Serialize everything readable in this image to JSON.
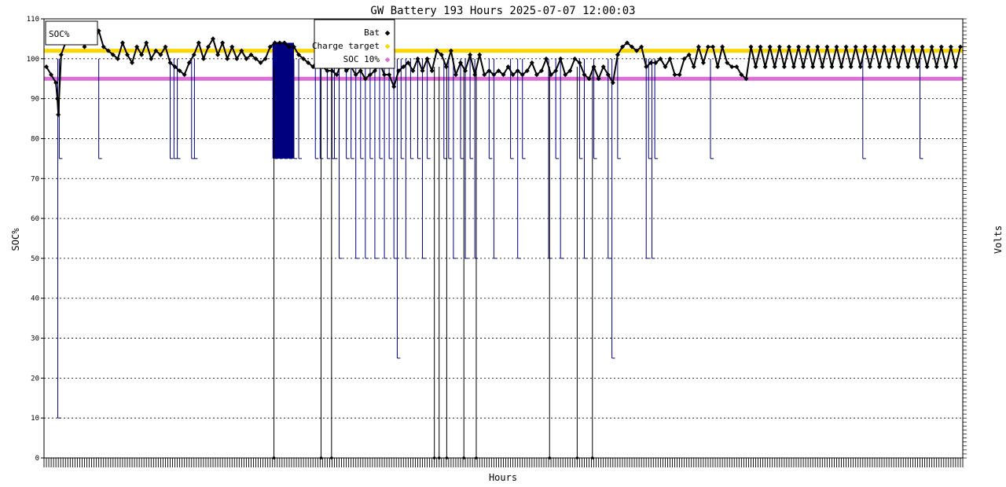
{
  "chart_data": {
    "type": "line",
    "title": "GW Battery 193 Hours 2025-07-07 12:00:03",
    "xlabel": "Hours",
    "ylabel": "SOC%",
    "y2label": "Volts",
    "inner_box_label": "SOC%",
    "ylim": [
      0,
      110
    ],
    "yticks": [
      0,
      10,
      20,
      30,
      40,
      50,
      60,
      70,
      80,
      90,
      100,
      110
    ],
    "xlim": [
      0,
      193
    ],
    "grid": true,
    "legend_position": "top-center",
    "colors": {
      "bat": "#000000",
      "soc_line": "#00007f",
      "charge_target": "#ffd700",
      "soc10": "#da70d6"
    },
    "series": [
      {
        "name": "Bat",
        "kind": "markers"
      },
      {
        "name": "Charge target",
        "kind": "hline",
        "value": 102
      },
      {
        "name": "SOC 10%",
        "kind": "hline",
        "value": 95
      }
    ],
    "bat_points": [
      [
        0.5,
        98
      ],
      [
        1.5,
        96
      ],
      [
        2.5,
        94
      ],
      [
        2.8,
        90
      ],
      [
        3.0,
        86
      ],
      [
        3.6,
        101
      ],
      [
        4.5,
        104
      ],
      [
        5.5,
        106
      ],
      [
        6.5,
        105
      ],
      [
        7.5,
        107
      ],
      [
        8.5,
        103
      ],
      [
        9.5,
        106
      ],
      [
        10.5,
        104
      ],
      [
        11.5,
        107
      ],
      [
        12.5,
        103
      ],
      [
        13.5,
        102
      ],
      [
        14.5,
        101
      ],
      [
        15.5,
        100
      ],
      [
        16.5,
        104
      ],
      [
        17.5,
        101
      ],
      [
        18.5,
        99
      ],
      [
        19.5,
        103
      ],
      [
        20.5,
        101
      ],
      [
        21.5,
        104
      ],
      [
        22.5,
        100
      ],
      [
        23.5,
        102
      ],
      [
        24.5,
        101
      ],
      [
        25.5,
        103
      ],
      [
        26.5,
        99
      ],
      [
        27.5,
        98
      ],
      [
        28.5,
        97
      ],
      [
        29.5,
        96
      ],
      [
        30.5,
        99
      ],
      [
        31.5,
        101
      ],
      [
        32.5,
        104
      ],
      [
        33.5,
        100
      ],
      [
        34.5,
        103
      ],
      [
        35.5,
        105
      ],
      [
        36.5,
        101
      ],
      [
        37.5,
        104
      ],
      [
        38.5,
        100
      ],
      [
        39.5,
        103
      ],
      [
        40.5,
        100
      ],
      [
        41.5,
        102
      ],
      [
        42.5,
        100
      ],
      [
        43.5,
        101
      ],
      [
        44.5,
        100
      ],
      [
        45.5,
        99
      ],
      [
        46.5,
        100
      ],
      [
        47.5,
        103
      ],
      [
        48.5,
        104
      ],
      [
        49.5,
        104
      ],
      [
        50.5,
        104
      ],
      [
        51.5,
        103
      ],
      [
        52.5,
        103
      ],
      [
        53.5,
        101
      ],
      [
        54.5,
        100
      ],
      [
        55.5,
        99
      ],
      [
        56.5,
        98
      ],
      [
        57.5,
        100
      ],
      [
        58.5,
        98
      ],
      [
        59.5,
        97
      ],
      [
        60.5,
        97
      ],
      [
        61.5,
        96
      ],
      [
        62.5,
        99
      ],
      [
        63.5,
        97
      ],
      [
        64.5,
        98
      ],
      [
        65.5,
        96
      ],
      [
        66.5,
        97
      ],
      [
        67.5,
        95
      ],
      [
        68.5,
        96
      ],
      [
        69.5,
        97
      ],
      [
        70.5,
        99
      ],
      [
        71.5,
        96
      ],
      [
        72.5,
        96
      ],
      [
        73.5,
        93
      ],
      [
        74.5,
        97
      ],
      [
        75.5,
        98
      ],
      [
        76.5,
        99
      ],
      [
        77.5,
        97
      ],
      [
        78.5,
        100
      ],
      [
        79.5,
        97
      ],
      [
        80.5,
        100
      ],
      [
        81.5,
        97
      ],
      [
        82.5,
        102
      ],
      [
        83.5,
        101
      ],
      [
        84.5,
        98
      ],
      [
        85.5,
        102
      ],
      [
        86.5,
        96
      ],
      [
        87.5,
        99
      ],
      [
        88.5,
        97
      ],
      [
        89.5,
        101
      ],
      [
        90.5,
        96
      ],
      [
        91.5,
        101
      ],
      [
        92.5,
        96
      ],
      [
        93.5,
        97
      ],
      [
        94.5,
        96
      ],
      [
        95.5,
        97
      ],
      [
        96.5,
        96
      ],
      [
        97.5,
        98
      ],
      [
        98.5,
        96
      ],
      [
        99.5,
        97
      ],
      [
        100.5,
        96
      ],
      [
        101.5,
        97
      ],
      [
        102.5,
        99
      ],
      [
        103.5,
        96
      ],
      [
        104.5,
        97
      ],
      [
        105.5,
        100
      ],
      [
        106.5,
        96
      ],
      [
        107.5,
        97
      ],
      [
        108.5,
        100
      ],
      [
        109.5,
        96
      ],
      [
        110.5,
        97
      ],
      [
        111.5,
        100
      ],
      [
        112.5,
        99
      ],
      [
        113.5,
        96
      ],
      [
        114.5,
        95
      ],
      [
        115.5,
        98
      ],
      [
        116.5,
        95
      ],
      [
        117.5,
        98
      ],
      [
        118.5,
        96
      ],
      [
        119.5,
        94
      ],
      [
        120.5,
        101
      ],
      [
        121.5,
        103
      ],
      [
        122.5,
        104
      ],
      [
        123.5,
        103
      ],
      [
        124.5,
        102
      ],
      [
        125.5,
        103
      ],
      [
        126.5,
        98
      ],
      [
        127.5,
        99
      ],
      [
        128.5,
        99
      ],
      [
        129.5,
        100
      ],
      [
        130.5,
        98
      ],
      [
        131.5,
        100
      ],
      [
        132.5,
        96
      ],
      [
        133.5,
        96
      ],
      [
        134.5,
        100
      ],
      [
        135.5,
        101
      ],
      [
        136.5,
        98
      ],
      [
        137.5,
        103
      ],
      [
        138.5,
        99
      ],
      [
        139.5,
        103
      ],
      [
        140.5,
        103
      ],
      [
        141.5,
        98
      ],
      [
        142.5,
        103
      ],
      [
        143.5,
        99
      ],
      [
        144.5,
        98
      ],
      [
        145.5,
        98
      ],
      [
        146.5,
        96
      ],
      [
        147.5,
        95
      ],
      [
        148.5,
        103
      ],
      [
        149.5,
        98
      ],
      [
        150.5,
        103
      ],
      [
        151.5,
        98
      ],
      [
        152.5,
        103
      ],
      [
        153.5,
        98
      ],
      [
        154.5,
        103
      ],
      [
        155.5,
        98
      ],
      [
        156.5,
        103
      ],
      [
        157.5,
        98
      ],
      [
        158.5,
        103
      ],
      [
        159.5,
        98
      ],
      [
        160.5,
        103
      ],
      [
        161.5,
        98
      ],
      [
        162.5,
        103
      ],
      [
        163.5,
        98
      ],
      [
        164.5,
        103
      ],
      [
        165.5,
        98
      ],
      [
        166.5,
        103
      ],
      [
        167.5,
        98
      ],
      [
        168.5,
        103
      ],
      [
        169.5,
        98
      ],
      [
        170.5,
        103
      ],
      [
        171.5,
        98
      ],
      [
        172.5,
        103
      ],
      [
        173.5,
        98
      ],
      [
        174.5,
        103
      ],
      [
        175.5,
        98
      ],
      [
        176.5,
        103
      ],
      [
        177.5,
        98
      ],
      [
        178.5,
        103
      ],
      [
        179.5,
        98
      ],
      [
        180.5,
        103
      ],
      [
        181.5,
        98
      ],
      [
        182.5,
        103
      ],
      [
        183.5,
        98
      ],
      [
        184.5,
        103
      ],
      [
        185.5,
        98
      ],
      [
        186.5,
        103
      ],
      [
        187.5,
        98
      ],
      [
        188.5,
        103
      ],
      [
        189.5,
        98
      ],
      [
        190.5,
        103
      ],
      [
        191.5,
        98
      ],
      [
        192.5,
        103
      ]
    ],
    "soc_drops": [
      [
        2.9,
        10
      ],
      [
        3.2,
        75
      ],
      [
        11.5,
        75
      ],
      [
        26.5,
        75
      ],
      [
        27.3,
        75
      ],
      [
        28.0,
        75
      ],
      [
        31.0,
        75
      ],
      [
        31.6,
        75
      ],
      [
        48.5,
        75
      ],
      [
        49.5,
        75
      ],
      [
        50.5,
        75
      ],
      [
        51.5,
        75
      ],
      [
        52.5,
        75
      ],
      [
        53.5,
        75
      ],
      [
        57.0,
        75
      ],
      [
        58.0,
        75
      ],
      [
        59.5,
        75
      ],
      [
        60.5,
        75
      ],
      [
        61.0,
        75
      ],
      [
        62.0,
        50
      ],
      [
        63.5,
        75
      ],
      [
        64.5,
        75
      ],
      [
        65.5,
        50
      ],
      [
        66.5,
        75
      ],
      [
        67.5,
        50
      ],
      [
        68.5,
        75
      ],
      [
        69.5,
        50
      ],
      [
        70.5,
        75
      ],
      [
        71.5,
        50
      ],
      [
        72.5,
        75
      ],
      [
        73.5,
        50
      ],
      [
        74.2,
        25
      ],
      [
        75.0,
        75
      ],
      [
        76.0,
        50
      ],
      [
        77.0,
        75
      ],
      [
        78.5,
        75
      ],
      [
        79.5,
        50
      ],
      [
        80.5,
        75
      ],
      [
        84.0,
        75
      ],
      [
        85.0,
        75
      ],
      [
        86.0,
        50
      ],
      [
        87.5,
        75
      ],
      [
        88.5,
        50
      ],
      [
        89.5,
        75
      ],
      [
        90.5,
        50
      ],
      [
        93.5,
        75
      ],
      [
        94.5,
        50
      ],
      [
        98.0,
        75
      ],
      [
        99.5,
        50
      ],
      [
        100.5,
        75
      ],
      [
        106.0,
        50
      ],
      [
        107.5,
        75
      ],
      [
        108.5,
        50
      ],
      [
        112.5,
        75
      ],
      [
        113.5,
        50
      ],
      [
        115.5,
        75
      ],
      [
        118.5,
        50
      ],
      [
        119.3,
        25
      ],
      [
        120.5,
        75
      ],
      [
        126.5,
        50
      ],
      [
        127.0,
        75
      ],
      [
        127.7,
        50
      ],
      [
        128.3,
        75
      ],
      [
        140.0,
        75
      ],
      [
        172.0,
        75
      ],
      [
        184.0,
        75
      ]
    ],
    "zero_drops": [
      48.3,
      58.2,
      60.4,
      82.0,
      83.0,
      84.6,
      88.2,
      90.8,
      106.2,
      112.0,
      115.2
    ],
    "dense_band": [
      48.0,
      52.5
    ]
  }
}
